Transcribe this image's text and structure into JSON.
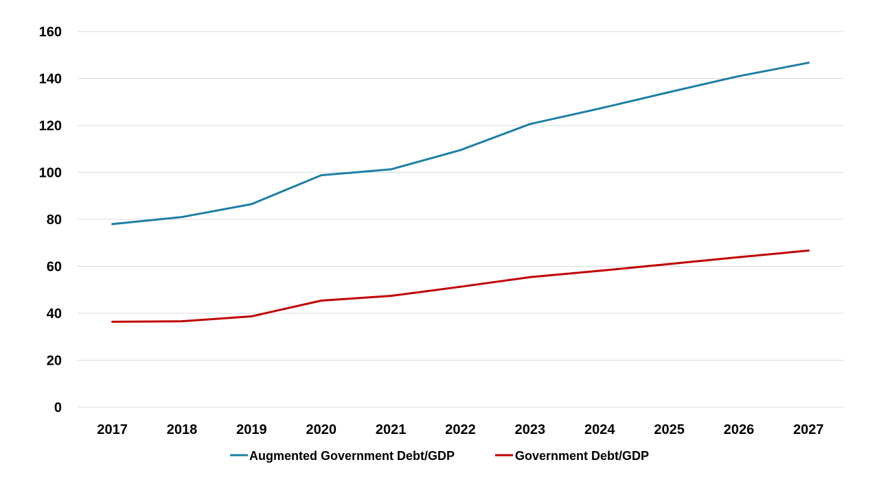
{
  "chart_data": {
    "type": "line",
    "title": "",
    "xlabel": "",
    "ylabel": "",
    "categories": [
      "2017",
      "2018",
      "2019",
      "2020",
      "2021",
      "2022",
      "2023",
      "2024",
      "2025",
      "2026",
      "2027"
    ],
    "ylim": [
      0,
      160
    ],
    "yticks": [
      0,
      20,
      40,
      60,
      80,
      100,
      120,
      140,
      160
    ],
    "grid": true,
    "legend_position": "bottom",
    "series": [
      {
        "name": "Augmented Government Debt/GDP",
        "color": "#1B7FA6",
        "values": [
          78,
          81,
          86.5,
          98.8,
          101.3,
          109.5,
          120.6,
          127.2,
          134.2,
          141,
          146.7
        ]
      },
      {
        "name": "Government Debt/GDP",
        "color": "#C00000",
        "values": [
          36.4,
          36.6,
          38.7,
          45.4,
          47.4,
          51.3,
          55.4,
          58.1,
          61,
          63.9,
          66.7
        ]
      }
    ]
  }
}
